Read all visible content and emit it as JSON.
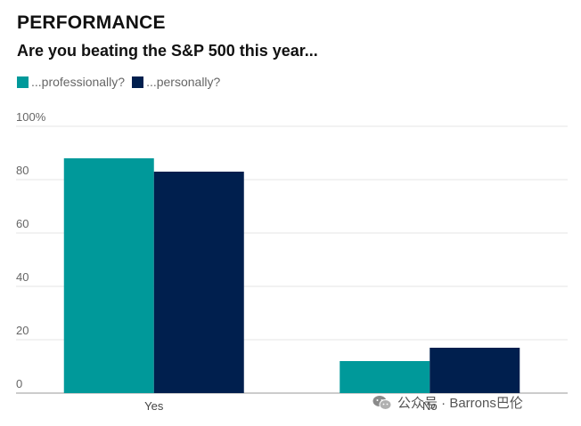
{
  "chart_data": {
    "type": "bar",
    "title": "PERFORMANCE",
    "subtitle": "Are you beating the S&P 500 this year...",
    "categories": [
      "Yes",
      "No"
    ],
    "series": [
      {
        "name": "...professionally?",
        "values": [
          88,
          12
        ],
        "color": "#00999A"
      },
      {
        "name": "...personally?",
        "values": [
          83,
          17
        ],
        "color": "#001F4E"
      }
    ],
    "yticks": [
      "0",
      "20",
      "40",
      "60",
      "80",
      "100%"
    ],
    "ylim": [
      0,
      100
    ],
    "grid": true,
    "legend_position": "top-left"
  },
  "watermark": {
    "text": "公众号 · Barrons巴伦",
    "icon": "wechat-icon"
  }
}
